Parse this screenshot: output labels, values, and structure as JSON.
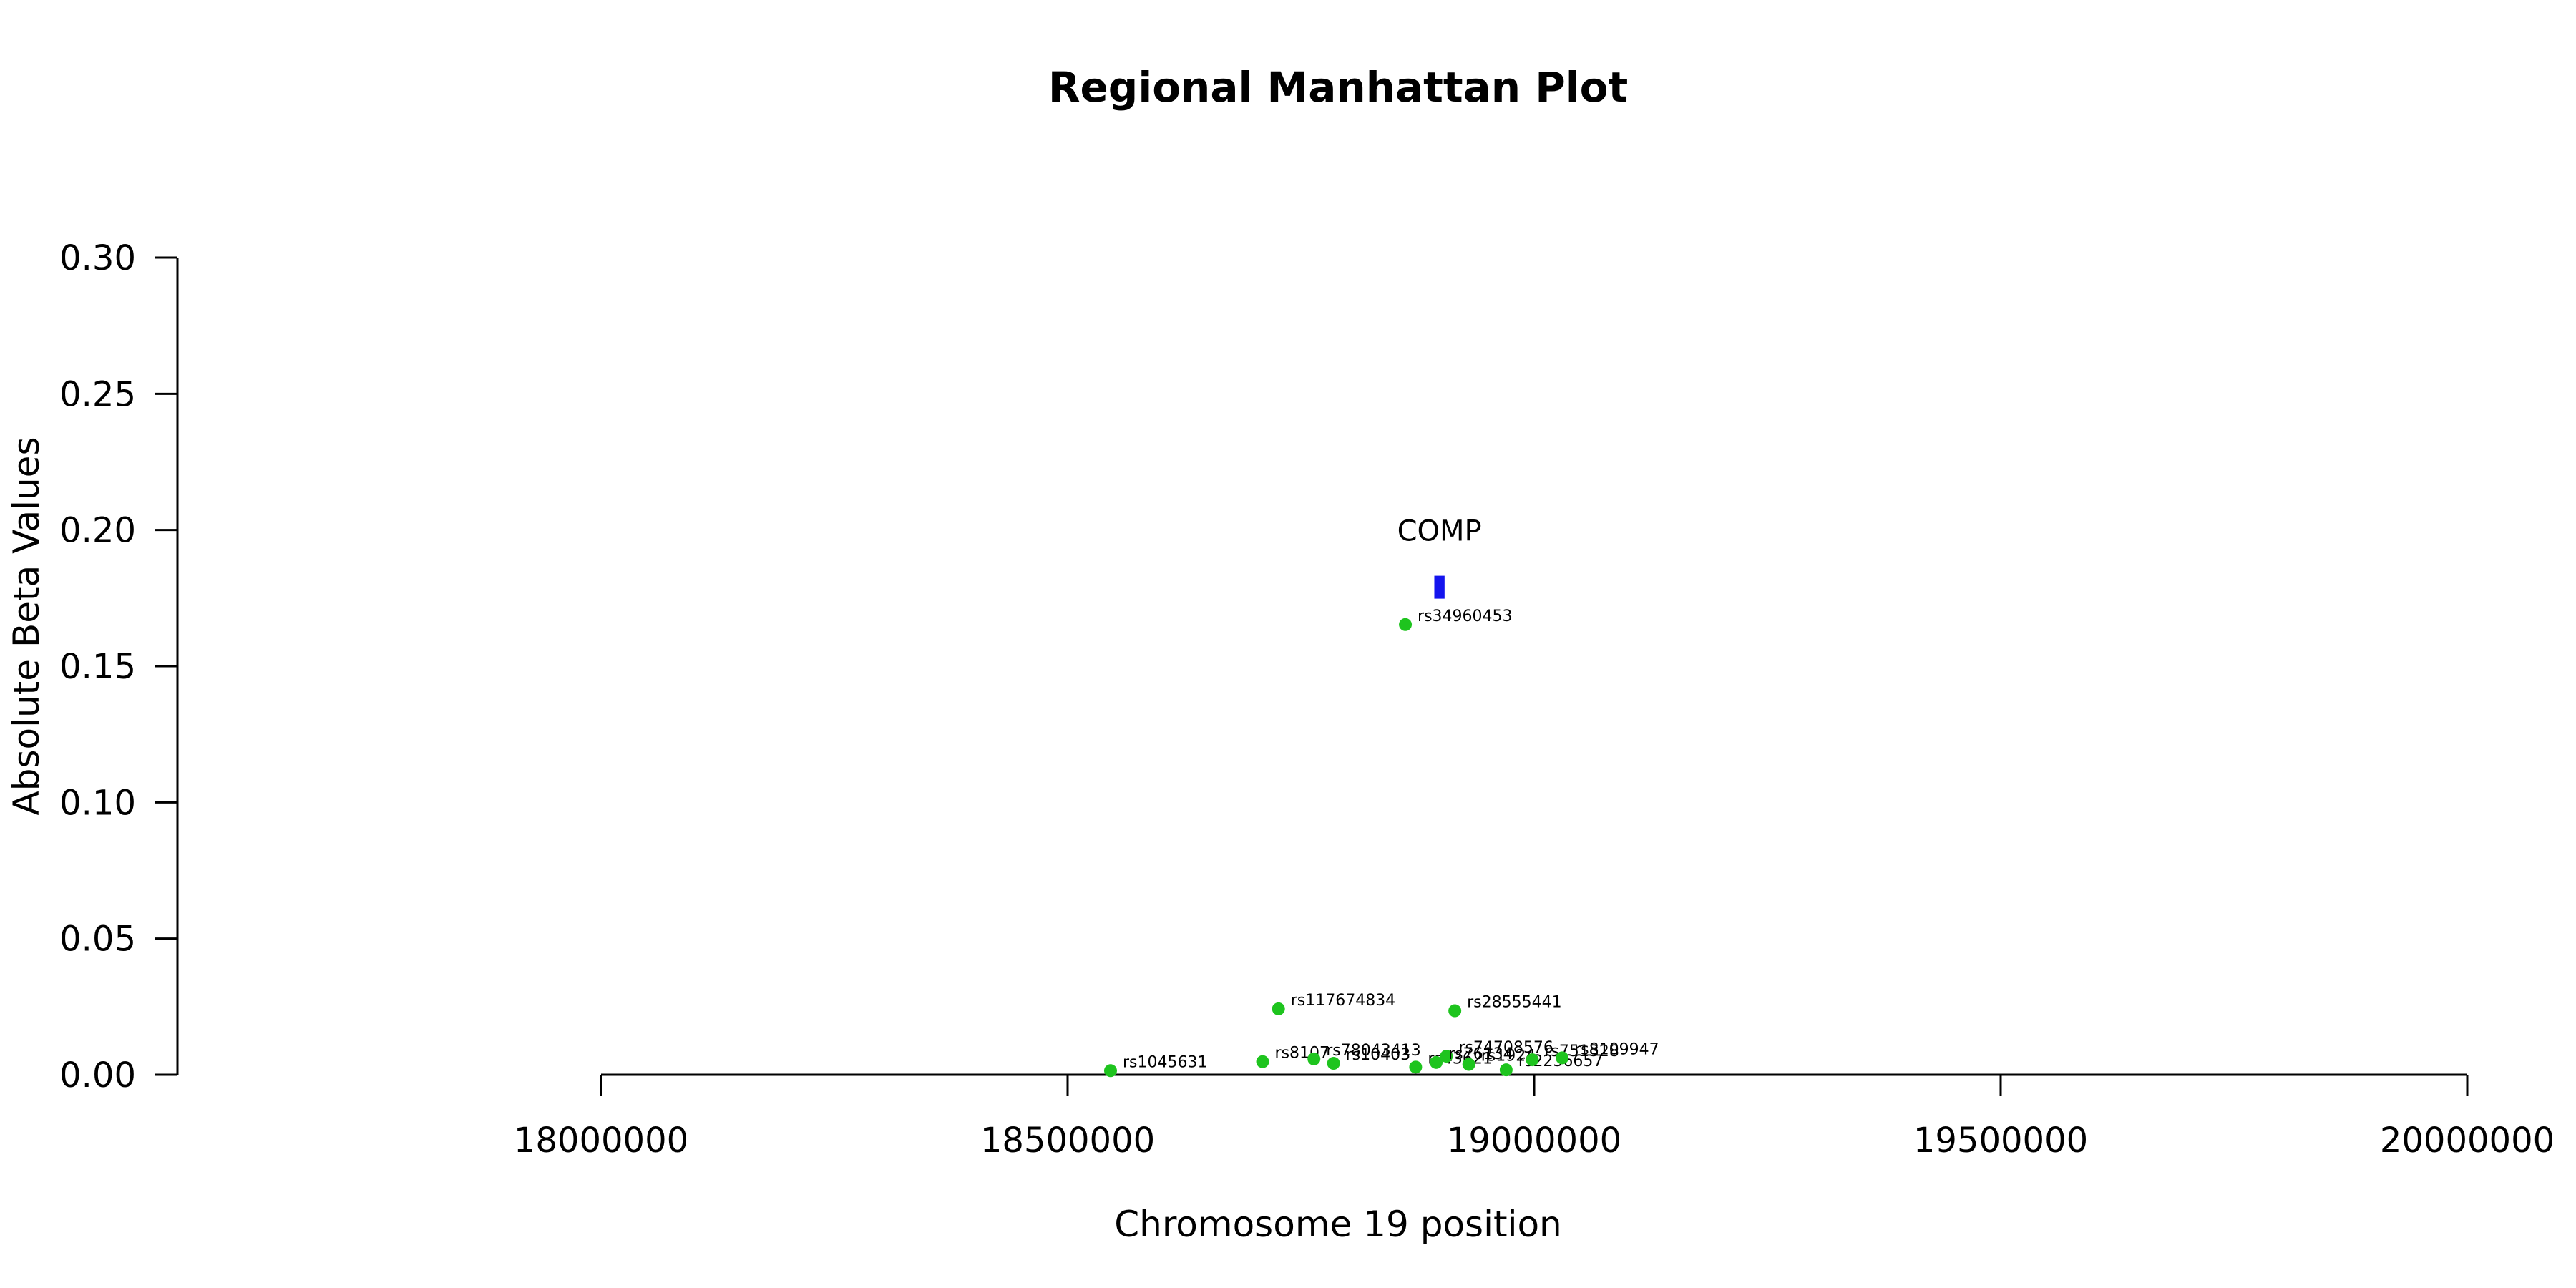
{
  "chart_data": {
    "type": "scatter",
    "title": "Regional Manhattan Plot",
    "xlabel": "Chromosome 19 position",
    "ylabel": "Absolute Beta Values",
    "xlim": [
      18000000,
      20000000
    ],
    "ylim": [
      0,
      0.3
    ],
    "x_ticks": [
      18000000,
      18500000,
      19000000,
      19500000,
      20000000
    ],
    "x_tick_labels": [
      "18000000",
      "18500000",
      "19000000",
      "19500000",
      "20000000"
    ],
    "y_ticks": [
      0,
      0.05,
      0.1,
      0.15,
      0.2,
      0.25,
      0.3
    ],
    "y_tick_labels": [
      "0.00",
      "0.05",
      "0.10",
      "0.15",
      "0.20",
      "0.25",
      "0.30"
    ],
    "grid": false,
    "point_color": "#1ec41e",
    "gene_color": "#1414ee",
    "points": [
      {
        "label": "rs1045631",
        "x": 18546000,
        "y": 0.0015
      },
      {
        "label": "rs117674834",
        "x": 18726000,
        "y": 0.0242
      },
      {
        "label": "rs8107",
        "x": 18709000,
        "y": 0.0048
      },
      {
        "label": "rs78043413",
        "x": 18764000,
        "y": 0.0058
      },
      {
        "label": "rs10403",
        "x": 18785000,
        "y": 0.0042
      },
      {
        "label": "rs34960453",
        "x": 18862000,
        "y": 0.1653
      },
      {
        "label": "rs43621",
        "x": 18873000,
        "y": 0.0028
      },
      {
        "label": "rs28555441",
        "x": 18915000,
        "y": 0.0235
      },
      {
        "label": "rs74708576",
        "x": 18906000,
        "y": 0.0068
      },
      {
        "label": "rs76134",
        "x": 18895000,
        "y": 0.0045
      },
      {
        "label": "rs1924",
        "x": 18930000,
        "y": 0.0038
      },
      {
        "label": "rs2236657",
        "x": 18970000,
        "y": 0.0018
      },
      {
        "label": "rs751328",
        "x": 18998000,
        "y": 0.0055
      },
      {
        "label": "rs8109947",
        "x": 19030000,
        "y": 0.0062
      }
    ],
    "genes": [
      {
        "name": "COMP",
        "start": 18893000,
        "end": 18904000,
        "y": 0.179
      }
    ]
  }
}
